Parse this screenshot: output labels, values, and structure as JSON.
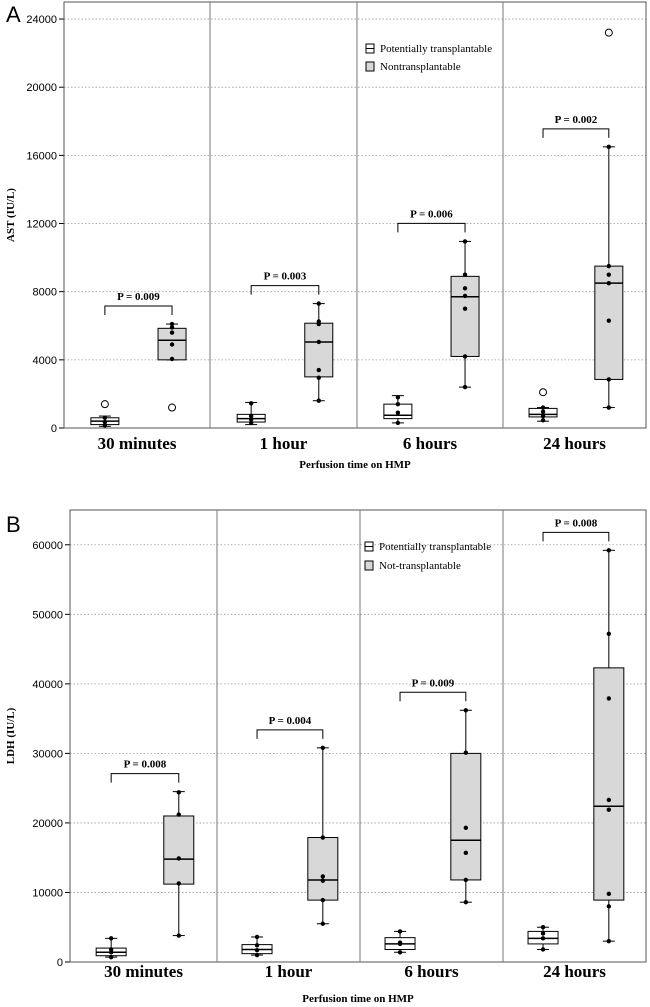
{
  "chart_data": [
    {
      "type": "box",
      "panel_label": "A",
      "ylabel": "AST (IU/L)",
      "xlabel": "Perfusion time on HMP",
      "ylim": [
        0,
        25000
      ],
      "yticks": [
        0,
        4000,
        8000,
        12000,
        16000,
        20000,
        24000
      ],
      "categories": [
        "30 minutes",
        "1 hour",
        "6 hours",
        "24 hours"
      ],
      "legend": {
        "placement": "top-center",
        "entries": [
          "Potentially transplantable",
          "Nontransplantable"
        ]
      },
      "grid": true,
      "colors": {
        "transplantable": "#ffffff",
        "nontransplantable": "#d8d8d8"
      },
      "series": [
        {
          "name": "Potentially transplantable",
          "boxes": [
            {
              "min": 100,
              "q1": 200,
              "median": 400,
              "q3": 600,
              "max": 700,
              "points": [
                150,
                350,
                600
              ],
              "outliers": [
                1400
              ]
            },
            {
              "min": 200,
              "q1": 350,
              "median": 550,
              "q3": 800,
              "max": 1500,
              "points": [
                300,
                500,
                700,
                1450
              ],
              "outliers": []
            },
            {
              "min": 300,
              "q1": 550,
              "median": 750,
              "q3": 1400,
              "max": 1900,
              "points": [
                300,
                900,
                1400,
                1800
              ],
              "outliers": []
            },
            {
              "min": 400,
              "q1": 650,
              "median": 800,
              "q3": 1150,
              "max": 1200,
              "points": [
                450,
                700,
                950,
                1200
              ],
              "outliers": [
                2100
              ]
            }
          ]
        },
        {
          "name": "Nontransplantable",
          "boxes": [
            {
              "min": 4000,
              "q1": 4000,
              "median": 5150,
              "q3": 5850,
              "max": 6100,
              "points": [
                4050,
                4900,
                5600,
                5900,
                6100
              ],
              "outliers": [
                1200
              ]
            },
            {
              "min": 1600,
              "q1": 3000,
              "median": 5050,
              "q3": 6150,
              "max": 7300,
              "points": [
                1600,
                2950,
                3400,
                5050,
                6100,
                6250,
                7300
              ],
              "outliers": []
            },
            {
              "min": 2400,
              "q1": 4200,
              "median": 7700,
              "q3": 8900,
              "max": 10950,
              "points": [
                2400,
                4200,
                7000,
                7750,
                8200,
                9000,
                10950
              ],
              "outliers": []
            },
            {
              "min": 1200,
              "q1": 2850,
              "median": 8500,
              "q3": 9500,
              "max": 16500,
              "points": [
                1200,
                2850,
                6300,
                8500,
                9000,
                9500,
                16500
              ],
              "outliers": [
                23200
              ]
            }
          ]
        }
      ],
      "pvalues": [
        "P = 0.009",
        "P = 0.003",
        "P = 0.006",
        "P = 0.002"
      ]
    },
    {
      "type": "box",
      "panel_label": "B",
      "ylabel": "LDH (IU/L)",
      "xlabel": "Perfusion time on HMP",
      "ylim": [
        0,
        65000
      ],
      "yticks": [
        0,
        10000,
        20000,
        30000,
        40000,
        50000,
        60000
      ],
      "categories": [
        "30 minutes",
        "1 hour",
        "6 hours",
        "24 hours"
      ],
      "legend": {
        "placement": "top-center",
        "entries": [
          "Potentially transplantable",
          "Not-transplantable"
        ]
      },
      "grid": true,
      "colors": {
        "transplantable": "#ffffff",
        "nontransplantable": "#d8d8d8"
      },
      "series": [
        {
          "name": "Potentially transplantable",
          "boxes": [
            {
              "min": 700,
              "q1": 900,
              "median": 1400,
              "q3": 2000,
              "max": 3400,
              "points": [
                700,
                1400,
                1800,
                3400
              ],
              "outliers": []
            },
            {
              "min": 1000,
              "q1": 1200,
              "median": 1800,
              "q3": 2500,
              "max": 3600,
              "points": [
                1000,
                1700,
                2400,
                3600
              ],
              "outliers": []
            },
            {
              "min": 1400,
              "q1": 1800,
              "median": 2600,
              "q3": 3500,
              "max": 4400,
              "points": [
                1400,
                2600,
                2800,
                4400
              ],
              "outliers": []
            },
            {
              "min": 1800,
              "q1": 2600,
              "median": 3400,
              "q3": 4400,
              "max": 5000,
              "points": [
                1800,
                3400,
                4100,
                5000
              ],
              "outliers": []
            }
          ]
        },
        {
          "name": "Not-transplantable",
          "boxes": [
            {
              "min": 3800,
              "q1": 11200,
              "median": 14800,
              "q3": 21000,
              "max": 24500,
              "points": [
                3800,
                11300,
                14900,
                21200,
                24400
              ],
              "outliers": []
            },
            {
              "min": 5500,
              "q1": 8900,
              "median": 11800,
              "q3": 17900,
              "max": 30800,
              "points": [
                5500,
                8900,
                11700,
                12300,
                17900,
                30800
              ],
              "outliers": []
            },
            {
              "min": 8600,
              "q1": 11800,
              "median": 17500,
              "q3": 30000,
              "max": 36200,
              "points": [
                8600,
                11800,
                15700,
                19300,
                30100,
                36200
              ],
              "outliers": []
            },
            {
              "min": 3000,
              "q1": 8900,
              "median": 22400,
              "q3": 42300,
              "max": 59200,
              "points": [
                3000,
                8000,
                9800,
                21900,
                23300,
                37900,
                47200,
                59200
              ],
              "outliers": []
            }
          ]
        }
      ],
      "pvalues": [
        "P = 0.008",
        "P = 0.004",
        "P = 0.009",
        "P = 0.008"
      ]
    }
  ]
}
